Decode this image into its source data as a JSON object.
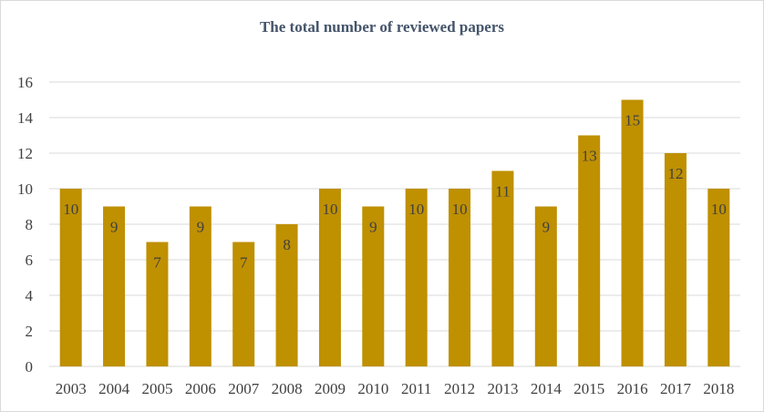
{
  "chart_data": {
    "type": "bar",
    "title": "The total number of reviewed papers",
    "categories": [
      "2003",
      "2004",
      "2005",
      "2006",
      "2007",
      "2008",
      "2009",
      "2010",
      "2011",
      "2012",
      "2013",
      "2014",
      "2015",
      "2016",
      "2017",
      "2018"
    ],
    "values": [
      10,
      9,
      7,
      9,
      7,
      8,
      10,
      9,
      10,
      10,
      11,
      9,
      13,
      15,
      12,
      10
    ],
    "ylim": [
      0,
      16
    ],
    "yticks": [
      "0",
      "2",
      "4",
      "6",
      "8",
      "10",
      "12",
      "14",
      "16"
    ],
    "grid": true,
    "bar_color": "#bf9000",
    "grid_color": "#d9d9d9",
    "data_labels": true
  }
}
